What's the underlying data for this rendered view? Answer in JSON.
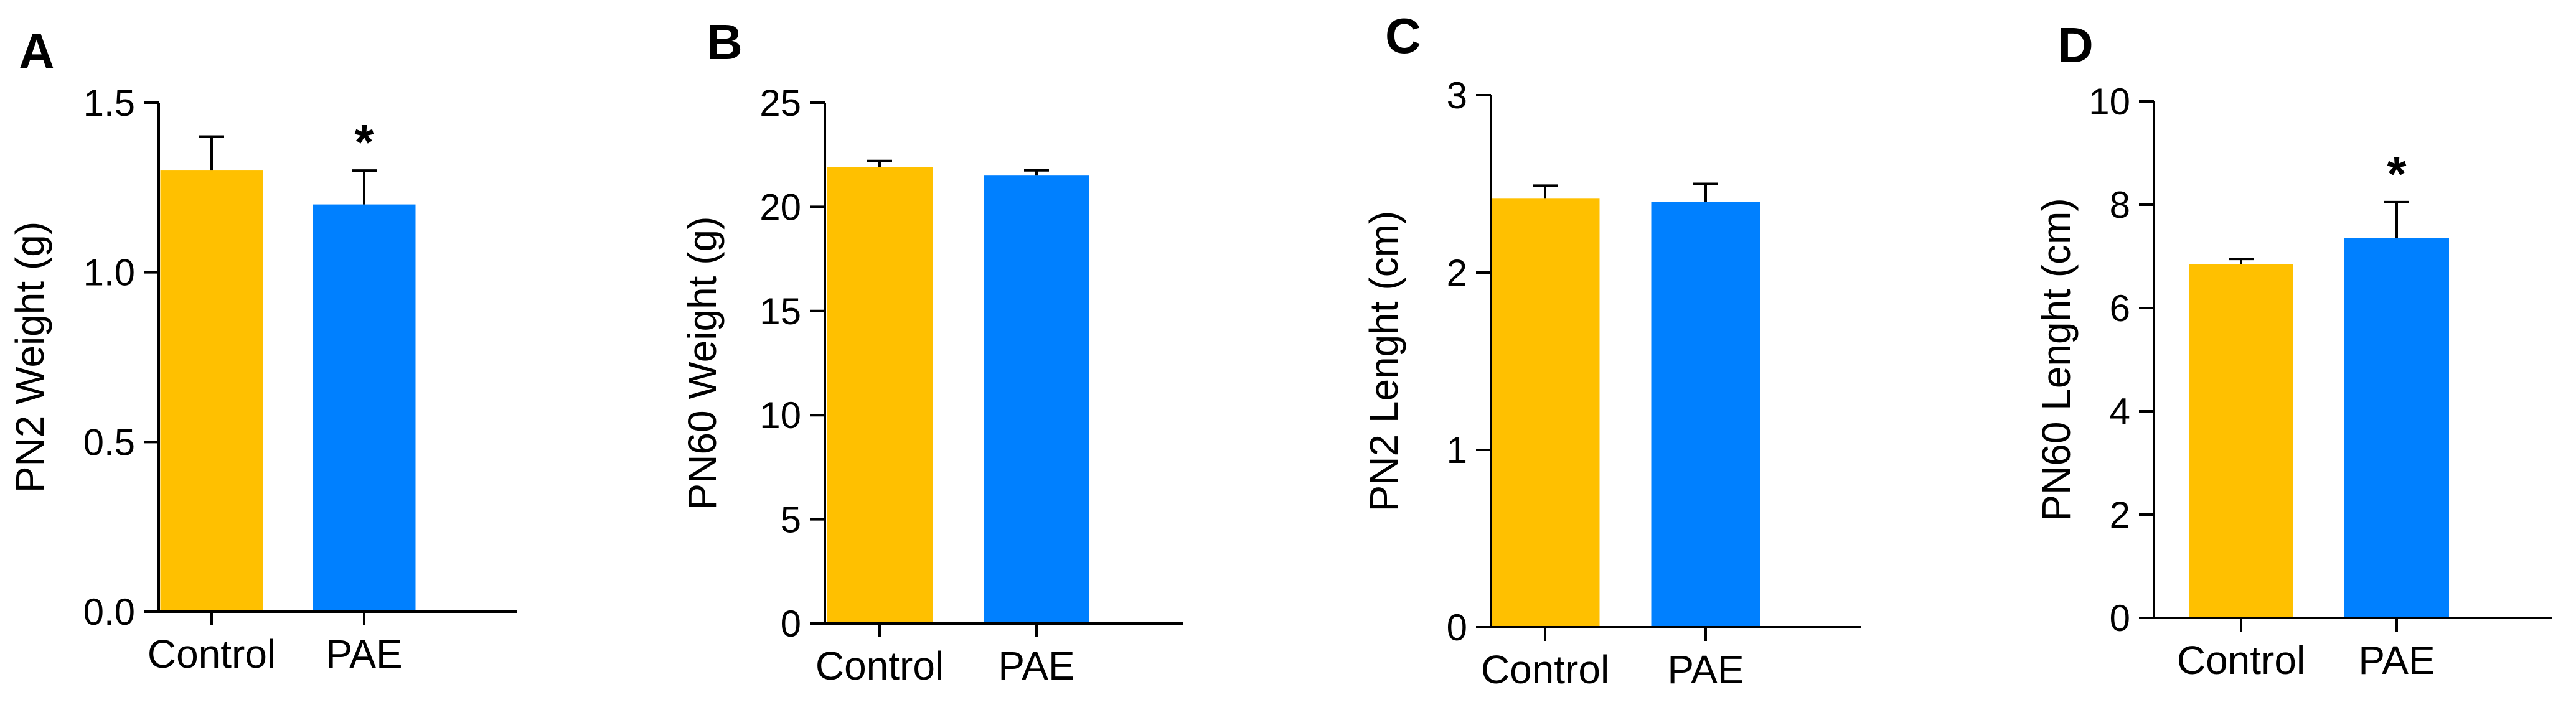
{
  "colors": {
    "control": "#FFC000",
    "pae": "#0080FF",
    "axis": "#000000"
  },
  "chart_data": [
    {
      "type": "bar",
      "panel": "A",
      "ylabel": "PN2 Weight (g)",
      "categories": [
        "Control",
        "PAE"
      ],
      "values": [
        1.3,
        1.2
      ],
      "errors": [
        0.1,
        0.1
      ],
      "significance": [
        "",
        "*"
      ],
      "ylim": [
        0,
        1.5
      ],
      "yticks": [
        0,
        0.5,
        1.0,
        1.5
      ],
      "ytick_labels": [
        "0.0",
        "0.5",
        "1.0",
        "1.5"
      ]
    },
    {
      "type": "bar",
      "panel": "B",
      "ylabel": "PN60 Weight (g)",
      "categories": [
        "Control",
        "PAE"
      ],
      "values": [
        21.9,
        21.5
      ],
      "errors": [
        0.3,
        0.25
      ],
      "significance": [
        "",
        ""
      ],
      "ylim": [
        0,
        25
      ],
      "yticks": [
        0,
        5,
        10,
        15,
        20,
        25
      ],
      "ytick_labels": [
        "0",
        "5",
        "10",
        "15",
        "20",
        "25"
      ]
    },
    {
      "type": "bar",
      "panel": "C",
      "ylabel": "PN2 Lenght (cm)",
      "categories": [
        "Control",
        "PAE"
      ],
      "values": [
        2.42,
        2.4
      ],
      "errors": [
        0.07,
        0.1
      ],
      "significance": [
        "",
        ""
      ],
      "ylim": [
        0,
        3
      ],
      "yticks": [
        0,
        1,
        2,
        3
      ],
      "ytick_labels": [
        "0",
        "1",
        "2",
        "3"
      ]
    },
    {
      "type": "bar",
      "panel": "D",
      "ylabel": "PN60 Lenght (cm)",
      "categories": [
        "Control",
        "PAE"
      ],
      "values": [
        6.85,
        7.35
      ],
      "errors": [
        0.1,
        0.7
      ],
      "significance": [
        "",
        "*"
      ],
      "ylim": [
        0,
        10
      ],
      "yticks": [
        0,
        2,
        4,
        6,
        8,
        10
      ],
      "ytick_labels": [
        "0",
        "2",
        "4",
        "6",
        "8",
        "10"
      ]
    }
  ]
}
